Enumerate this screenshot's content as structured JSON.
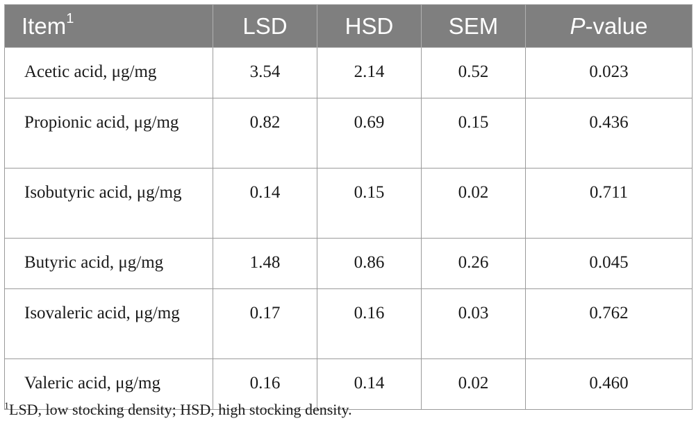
{
  "table": {
    "headers": {
      "item": "Item",
      "item_sup": "1",
      "lsd": "LSD",
      "hsd": "HSD",
      "sem": "SEM",
      "p_italic": "P",
      "p_rest": "-value"
    },
    "rows": [
      {
        "item": "Acetic acid, μg/mg",
        "lsd": "3.54",
        "hsd": "2.14",
        "sem": "0.52",
        "p": "0.023"
      },
      {
        "item": "Propionic acid, μg/mg",
        "lsd": "0.82",
        "hsd": "0.69",
        "sem": "0.15",
        "p": "0.436"
      },
      {
        "item": "Isobutyric acid, μg/mg",
        "lsd": "0.14",
        "hsd": "0.15",
        "sem": "0.02",
        "p": "0.711"
      },
      {
        "item": "Butyric acid, μg/mg",
        "lsd": "1.48",
        "hsd": "0.86",
        "sem": "0.26",
        "p": "0.045"
      },
      {
        "item": "Isovaleric acid, μg/mg",
        "lsd": "0.17",
        "hsd": "0.16",
        "sem": "0.03",
        "p": "0.762"
      },
      {
        "item": "Valeric acid, μg/mg",
        "lsd": "0.16",
        "hsd": "0.14",
        "sem": "0.02",
        "p": "0.460"
      }
    ]
  },
  "footnote": {
    "marker": "1",
    "text": "LSD, low stocking density; HSD, high stocking density."
  },
  "colors": {
    "header_bg": "#7f7f7f",
    "header_text": "#ffffff",
    "border": "#9a9a9a"
  }
}
